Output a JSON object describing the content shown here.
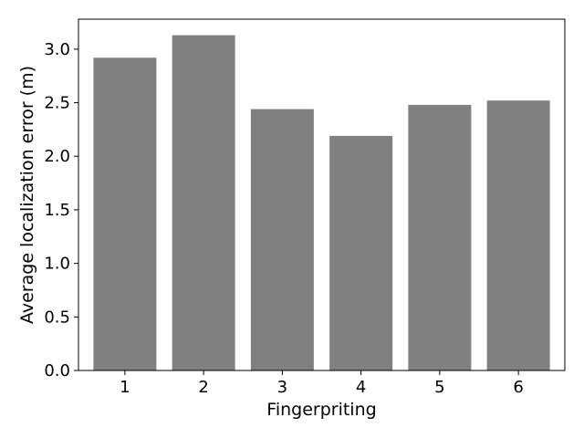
{
  "chart_data": {
    "type": "bar",
    "categories": [
      "1",
      "2",
      "3",
      "4",
      "5",
      "6"
    ],
    "values": [
      2.92,
      3.13,
      2.44,
      2.19,
      2.48,
      2.52
    ],
    "title": "",
    "xlabel": "Fingerpriting",
    "ylabel": "Average localization error (m)",
    "ylim": [
      0,
      3.28
    ],
    "yticks": [
      "0.0",
      "0.5",
      "1.0",
      "1.5",
      "2.0",
      "2.5",
      "3.0"
    ],
    "grid": false,
    "legend": "none",
    "bar_color": "#808080"
  }
}
